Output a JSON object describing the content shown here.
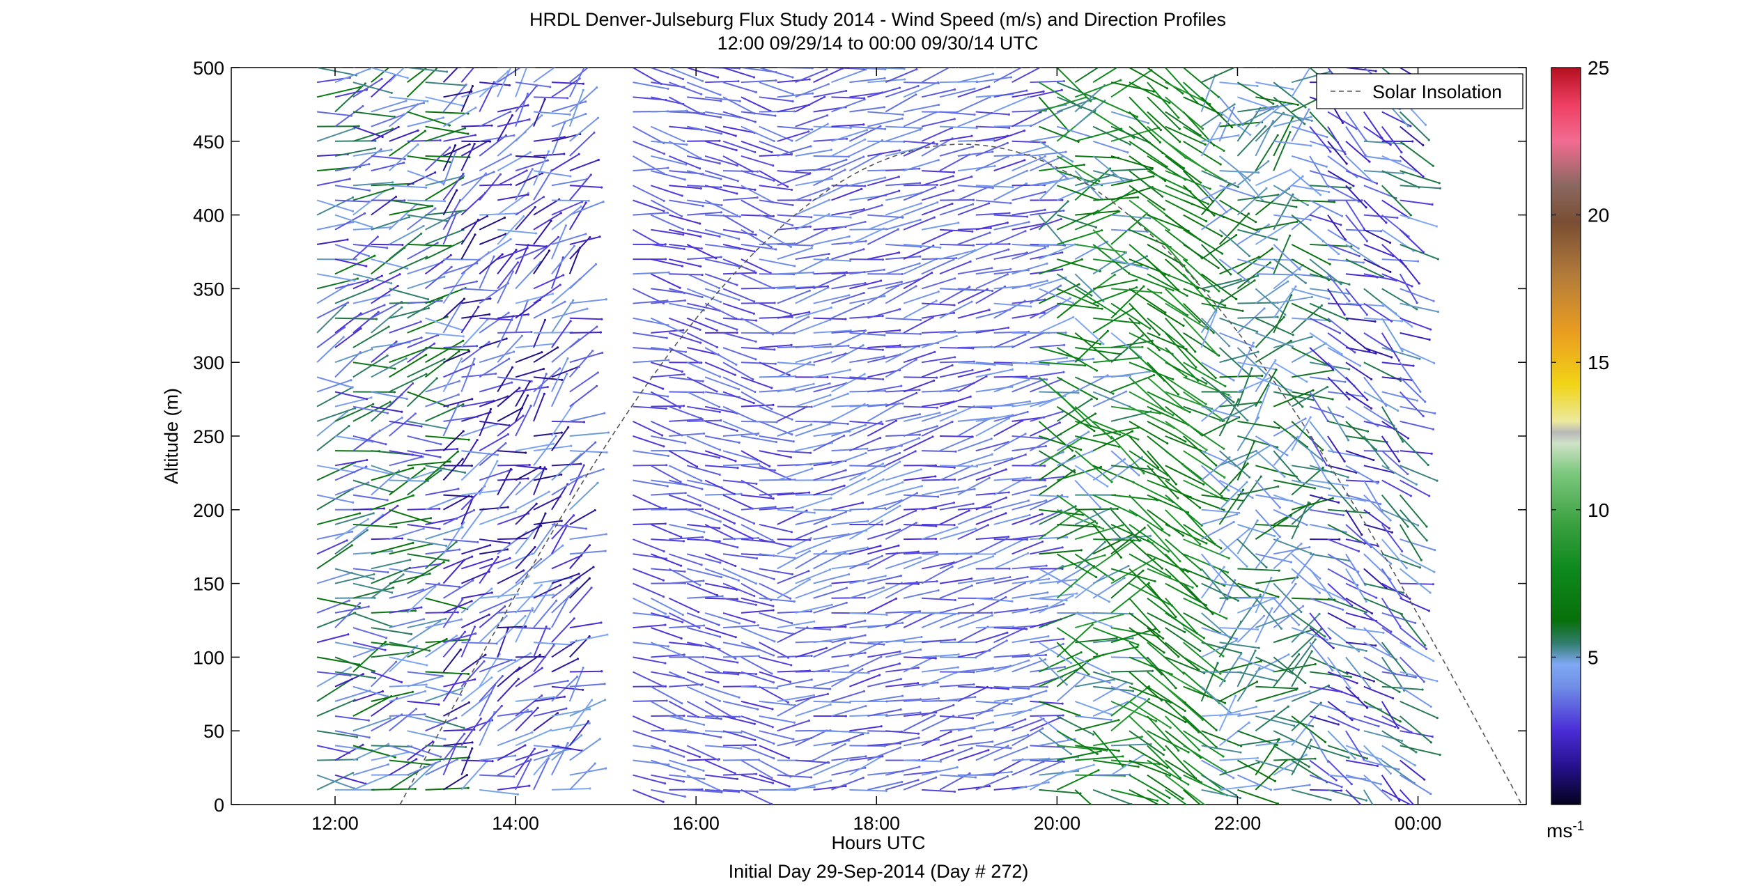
{
  "chart_data": {
    "type": "quiver",
    "title": "HRDL Denver-Julseburg Flux Study 2014 - Wind Speed (m/s) and Direction Profiles",
    "subtitle": "12:00 09/29/14 to 00:00 09/30/14  UTC",
    "xlabel": "Hours UTC",
    "ylabel": "Altitude (m)",
    "footer": "Initial Day 29-Sep-2014 (Day # 272)",
    "xlim_hours": [
      10.85,
      25.2
    ],
    "ylim": [
      0,
      500
    ],
    "x_tick_hours": [
      12,
      14,
      16,
      18,
      20,
      22,
      24
    ],
    "x_tick_labels": [
      "12:00",
      "14:00",
      "16:00",
      "18:00",
      "20:00",
      "22:00",
      "00:00"
    ],
    "y_ticks": [
      0,
      50,
      100,
      150,
      200,
      250,
      300,
      350,
      400,
      450,
      500
    ],
    "grid": false,
    "legend": {
      "label": "Solar Insolation",
      "placement": "top-right",
      "style": "dashed",
      "color": "#555555"
    },
    "colorbar": {
      "min": 0,
      "max": 25,
      "ticks": [
        5,
        10,
        15,
        20,
        25
      ],
      "unit_label": "ms",
      "unit_exponent": "-1"
    },
    "solar_insolation": {
      "start_hour": 12.72,
      "peak_hour": 18.95,
      "end_hour": 25.15,
      "peak_altitude_equivalent": 448
    },
    "wind_profiles": {
      "heights": [
        10,
        20,
        30,
        40,
        50,
        60,
        70,
        80,
        90,
        100,
        110,
        120,
        130,
        140,
        150,
        160,
        170,
        180,
        190,
        200,
        210,
        220,
        230,
        240,
        250,
        260,
        270,
        280,
        290,
        300,
        310,
        320,
        330,
        340,
        350,
        360,
        370,
        380,
        390,
        400,
        410,
        420,
        430,
        440,
        450,
        460,
        470,
        480,
        490,
        500
      ],
      "segments": [
        {
          "start": 11.8,
          "end": 13.0,
          "step": 0.2,
          "hmin": 10,
          "hmax": 500,
          "speed": [
            2.0,
            7.0
          ],
          "dir": [
            225,
            290
          ]
        },
        {
          "start": 13.2,
          "end": 14.6,
          "step": 0.2,
          "hmin": 10,
          "hmax": 500,
          "speed": [
            1.0,
            5.0
          ],
          "dir": [
            200,
            280
          ]
        },
        {
          "start": 15.3,
          "end": 16.7,
          "step": 0.2,
          "hmin": 10,
          "hmax": 500,
          "speed": [
            2.5,
            4.0
          ],
          "dir": [
            265,
            300
          ]
        },
        {
          "start": 16.9,
          "end": 19.7,
          "step": 0.2,
          "hmin": 10,
          "hmax": 500,
          "speed": [
            2.5,
            4.5
          ],
          "dir": [
            240,
            275
          ]
        },
        {
          "start": 19.8,
          "end": 20.6,
          "step": 0.2,
          "hmin": 10,
          "hmax": 500,
          "speed": [
            4.0,
            9.0
          ],
          "dir": [
            225,
            320
          ]
        },
        {
          "start": 20.8,
          "end": 21.4,
          "step": 0.2,
          "hmin": 10,
          "hmax": 500,
          "speed": [
            6.0,
            9.0
          ],
          "dir": [
            290,
            320
          ]
        },
        {
          "start": 21.6,
          "end": 22.6,
          "step": 0.2,
          "hmin": 10,
          "hmax": 500,
          "speed": [
            4.0,
            6.5
          ],
          "dir": [
            200,
            320
          ]
        },
        {
          "start": 22.8,
          "end": 23.8,
          "step": 0.2,
          "hmin": 10,
          "hmax": 500,
          "speed": [
            1.5,
            6.0
          ],
          "dir": [
            270,
            330
          ]
        }
      ]
    }
  }
}
